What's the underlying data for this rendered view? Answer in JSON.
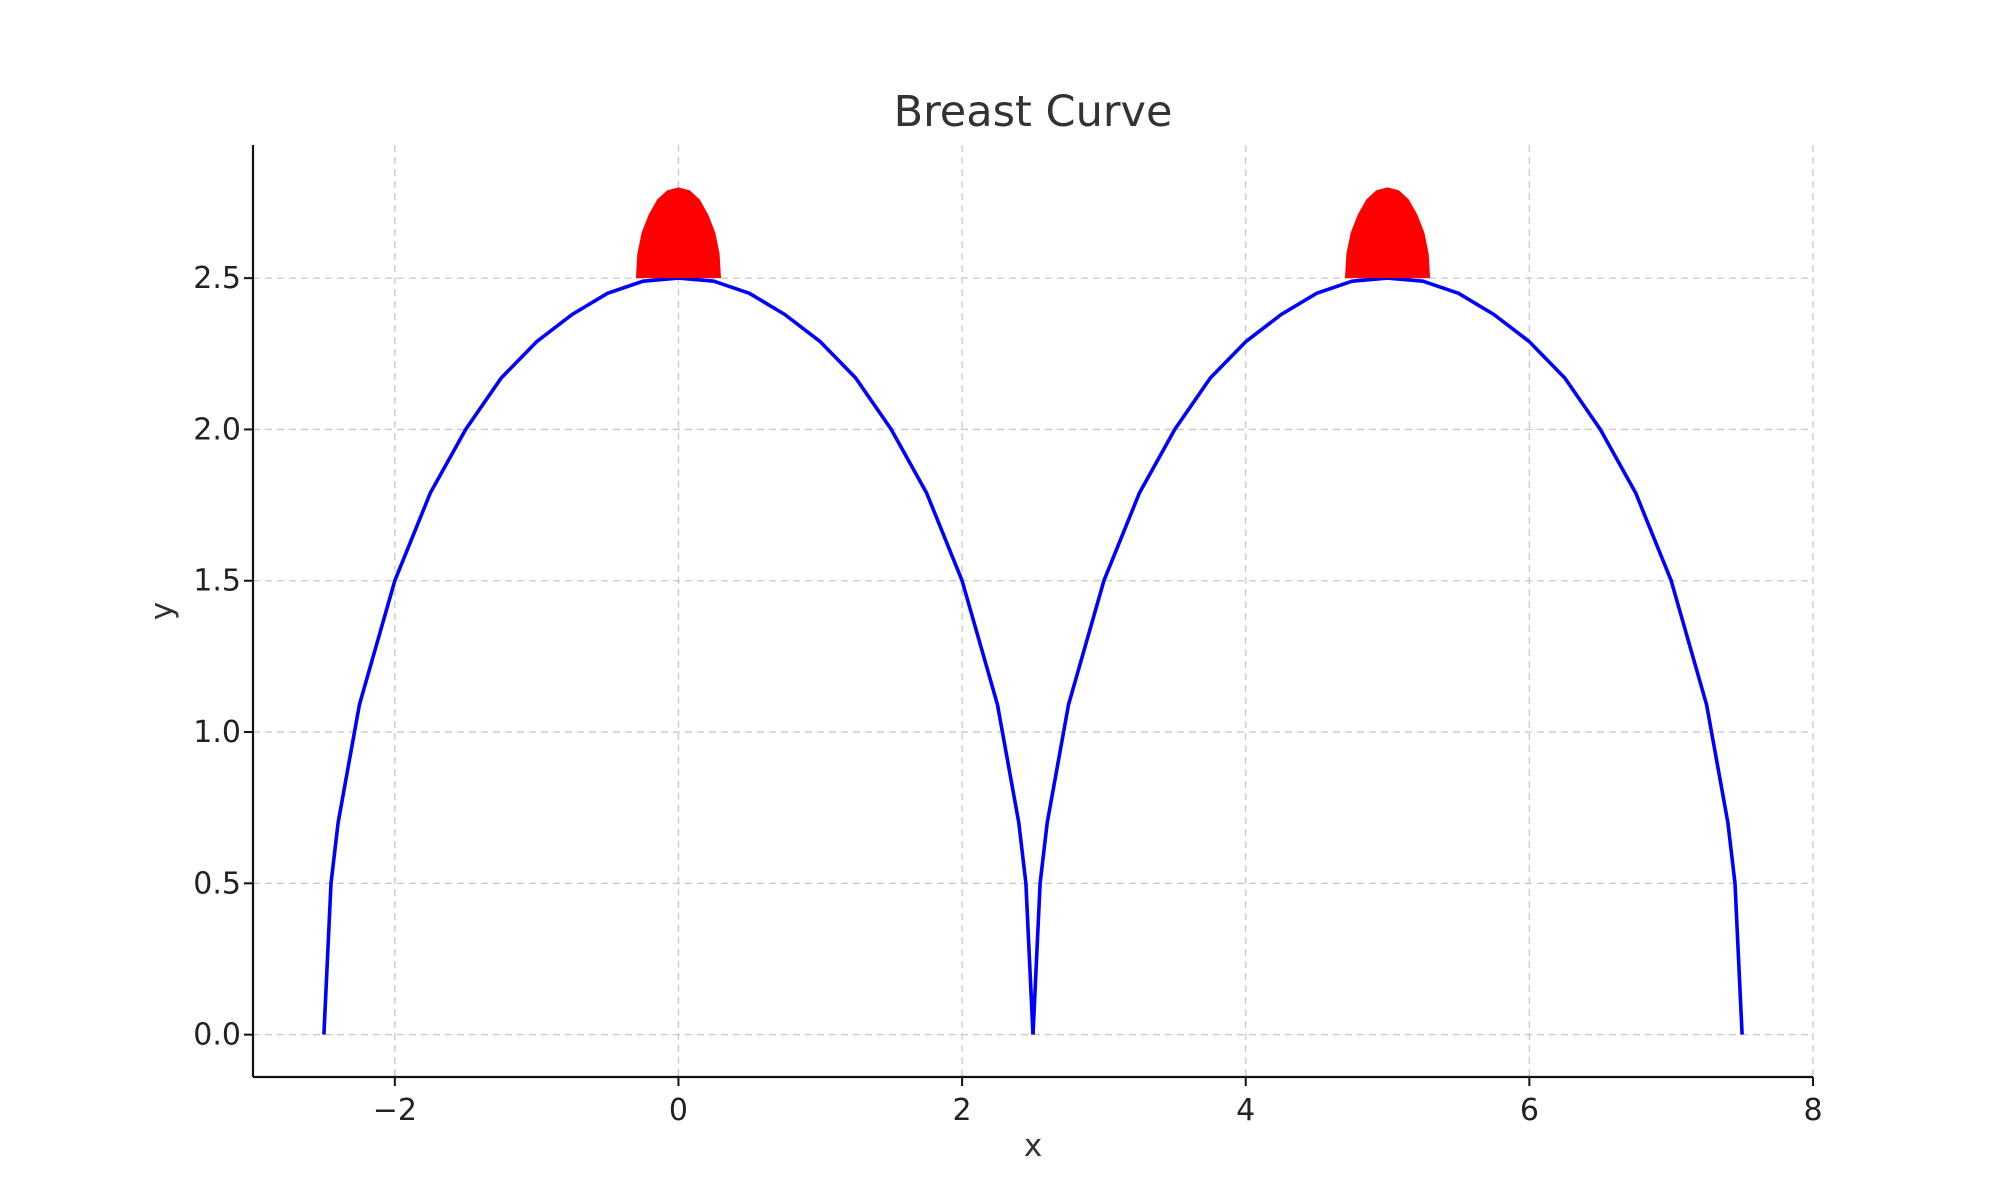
{
  "chart_data": {
    "type": "line",
    "title": "Breast Curve",
    "xlabel": "x",
    "ylabel": "y",
    "xlim": [
      -3,
      8
    ],
    "ylim": [
      -0.14,
      2.94
    ],
    "xticks": [
      -2,
      0,
      2,
      4,
      6,
      8
    ],
    "xtick_labels": [
      "−2",
      "0",
      "2",
      "4",
      "6",
      "8"
    ],
    "yticks": [
      0.0,
      0.5,
      1.0,
      1.5,
      2.0,
      2.5
    ],
    "ytick_labels": [
      "0.0",
      "0.5",
      "1.0",
      "1.5",
      "2.0",
      "2.5"
    ],
    "grid": true,
    "series": [
      {
        "kind": "line",
        "color": "#0000ff",
        "points": [
          [
            -2.5,
            0.0
          ],
          [
            -2.45,
            0.5
          ],
          [
            -2.4,
            0.7
          ],
          [
            -2.25,
            1.09
          ],
          [
            -2.0,
            1.5
          ],
          [
            -1.75,
            1.79
          ],
          [
            -1.5,
            2.0
          ],
          [
            -1.25,
            2.17
          ],
          [
            -1.0,
            2.29
          ],
          [
            -0.75,
            2.38
          ],
          [
            -0.5,
            2.45
          ],
          [
            -0.25,
            2.49
          ],
          [
            0.0,
            2.5
          ],
          [
            0.25,
            2.49
          ],
          [
            0.5,
            2.45
          ],
          [
            0.75,
            2.38
          ],
          [
            1.0,
            2.29
          ],
          [
            1.25,
            2.17
          ],
          [
            1.5,
            2.0
          ],
          [
            1.75,
            1.79
          ],
          [
            2.0,
            1.5
          ],
          [
            2.25,
            1.09
          ],
          [
            2.4,
            0.7
          ],
          [
            2.45,
            0.5
          ],
          [
            2.5,
            0.0
          ]
        ]
      },
      {
        "kind": "line",
        "color": "#0000ff",
        "points": [
          [
            2.5,
            0.0
          ],
          [
            2.55,
            0.5
          ],
          [
            2.6,
            0.7
          ],
          [
            2.75,
            1.09
          ],
          [
            3.0,
            1.5
          ],
          [
            3.25,
            1.79
          ],
          [
            3.5,
            2.0
          ],
          [
            3.75,
            2.17
          ],
          [
            4.0,
            2.29
          ],
          [
            4.25,
            2.38
          ],
          [
            4.5,
            2.45
          ],
          [
            4.75,
            2.49
          ],
          [
            5.0,
            2.5
          ],
          [
            5.25,
            2.49
          ],
          [
            5.5,
            2.45
          ],
          [
            5.75,
            2.38
          ],
          [
            6.0,
            2.29
          ],
          [
            6.25,
            2.17
          ],
          [
            6.5,
            2.0
          ],
          [
            6.75,
            1.79
          ],
          [
            7.0,
            1.5
          ],
          [
            7.25,
            1.09
          ],
          [
            7.4,
            0.7
          ],
          [
            7.45,
            0.5
          ],
          [
            7.5,
            0.0
          ]
        ]
      },
      {
        "kind": "filled",
        "color": "#ff0000",
        "points": [
          [
            -0.3,
            2.5
          ],
          [
            -0.29,
            2.58
          ],
          [
            -0.26,
            2.65
          ],
          [
            -0.21,
            2.71
          ],
          [
            -0.15,
            2.76
          ],
          [
            -0.08,
            2.79
          ],
          [
            0.0,
            2.8
          ],
          [
            0.08,
            2.79
          ],
          [
            0.15,
            2.76
          ],
          [
            0.21,
            2.71
          ],
          [
            0.26,
            2.65
          ],
          [
            0.29,
            2.58
          ],
          [
            0.3,
            2.5
          ]
        ]
      },
      {
        "kind": "filled",
        "color": "#ff0000",
        "points": [
          [
            4.7,
            2.5
          ],
          [
            4.71,
            2.58
          ],
          [
            4.74,
            2.65
          ],
          [
            4.79,
            2.71
          ],
          [
            4.85,
            2.76
          ],
          [
            4.92,
            2.79
          ],
          [
            5.0,
            2.8
          ],
          [
            5.08,
            2.79
          ],
          [
            5.15,
            2.76
          ],
          [
            5.21,
            2.71
          ],
          [
            5.26,
            2.65
          ],
          [
            5.29,
            2.58
          ],
          [
            5.3,
            2.5
          ]
        ]
      }
    ]
  }
}
